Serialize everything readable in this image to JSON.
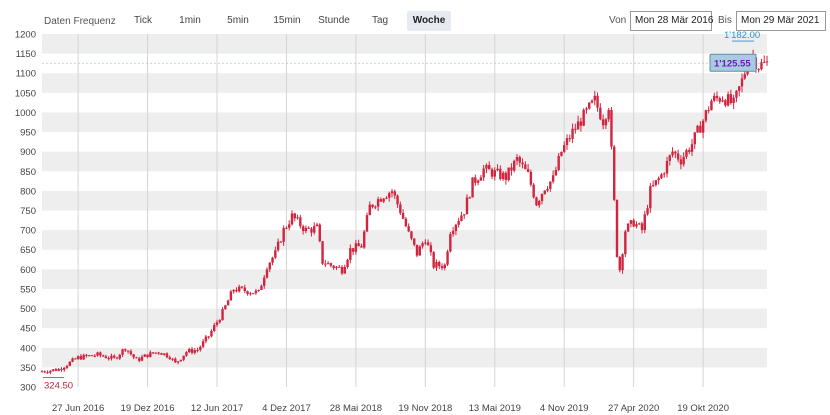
{
  "toolbar": {
    "frequency_label": "Daten Frequenz",
    "tabs": [
      {
        "label": "Tick",
        "active": false
      },
      {
        "label": "1min",
        "active": false
      },
      {
        "label": "5min",
        "active": false
      },
      {
        "label": "15min",
        "active": false
      },
      {
        "label": "Stunde",
        "active": false
      },
      {
        "label": "Tag",
        "active": false
      },
      {
        "label": "Woche",
        "active": true
      }
    ],
    "from_label": "Von",
    "from_value": "Mon 28 Mär 2016",
    "to_label": "Bis",
    "to_value": "Mon 29 Mär 2021"
  },
  "colors": {
    "candle": "#d0243f",
    "band_dark": "#eeeeee",
    "current_box_bg": "#a9cbe0",
    "current_box_border": "#5b8fb3",
    "current_text": "#6a1fb3",
    "high_label": "#2f8fc6",
    "low_label": "#c0233a"
  },
  "chart_data": {
    "type": "candlestick",
    "interval": "weekly",
    "ylim": [
      300,
      1200
    ],
    "yticks": [
      300,
      350,
      400,
      450,
      500,
      550,
      600,
      650,
      700,
      750,
      800,
      850,
      900,
      950,
      1000,
      1050,
      1100,
      1150,
      1200
    ],
    "xticks": [
      "27 Jun 2016",
      "19 Dez 2016",
      "12 Jun 2017",
      "4 Dez 2017",
      "28 Mai 2018",
      "19 Nov 2018",
      "13 Mai 2019",
      "4 Nov 2019",
      "27 Apr 2020",
      "19 Okt 2020"
    ],
    "xtick_dates": [
      "2016-06-27",
      "2016-12-19",
      "2017-06-12",
      "2017-12-04",
      "2018-05-28",
      "2018-11-19",
      "2019-05-13",
      "2019-11-04",
      "2020-04-27",
      "2020-10-19"
    ],
    "start": "2016-03-28",
    "end": "2021-03-29",
    "low_label": "324.50",
    "high_label": "1'182.00",
    "current_label": "1'125.55",
    "current_value": 1125.55,
    "anchors": [
      [
        "2016-03-28",
        340
      ],
      [
        "2016-05-09",
        345
      ],
      [
        "2016-06-27",
        375
      ],
      [
        "2016-08-15",
        382
      ],
      [
        "2016-09-26",
        372
      ],
      [
        "2016-10-24",
        400
      ],
      [
        "2016-11-21",
        368
      ],
      [
        "2016-12-19",
        382
      ],
      [
        "2017-01-16",
        390
      ],
      [
        "2017-02-13",
        378
      ],
      [
        "2017-02-27",
        360
      ],
      [
        "2017-03-27",
        390
      ],
      [
        "2017-04-24",
        395
      ],
      [
        "2017-05-22",
        430
      ],
      [
        "2017-06-26",
        490
      ],
      [
        "2017-07-24",
        550
      ],
      [
        "2017-08-28",
        545
      ],
      [
        "2017-09-25",
        540
      ],
      [
        "2017-10-16",
        610
      ],
      [
        "2017-11-06",
        640
      ],
      [
        "2017-11-27",
        700
      ],
      [
        "2017-12-18",
        735
      ],
      [
        "2018-01-22",
        700
      ],
      [
        "2018-02-19",
        705
      ],
      [
        "2018-03-05",
        620
      ],
      [
        "2018-03-26",
        610
      ],
      [
        "2018-04-23",
        600
      ],
      [
        "2018-05-14",
        650
      ],
      [
        "2018-06-11",
        660
      ],
      [
        "2018-07-02",
        760
      ],
      [
        "2018-08-06",
        790
      ],
      [
        "2018-08-27",
        800
      ],
      [
        "2018-09-17",
        750
      ],
      [
        "2018-10-08",
        690
      ],
      [
        "2018-10-29",
        640
      ],
      [
        "2018-11-19",
        680
      ],
      [
        "2018-12-10",
        610
      ],
      [
        "2019-01-07",
        610
      ],
      [
        "2019-01-21",
        700
      ],
      [
        "2019-02-25",
        750
      ],
      [
        "2019-03-18",
        820
      ],
      [
        "2019-04-15",
        855
      ],
      [
        "2019-05-13",
        845
      ],
      [
        "2019-06-10",
        835
      ],
      [
        "2019-07-08",
        880
      ],
      [
        "2019-08-05",
        840
      ],
      [
        "2019-08-26",
        770
      ],
      [
        "2019-09-16",
        810
      ],
      [
        "2019-10-07",
        830
      ],
      [
        "2019-10-28",
        900
      ],
      [
        "2019-11-25",
        950
      ],
      [
        "2019-12-23",
        990
      ],
      [
        "2020-01-20",
        1030
      ],
      [
        "2020-02-10",
        980
      ],
      [
        "2020-02-24",
        1020
      ],
      [
        "2020-03-02",
        900
      ],
      [
        "2020-03-16",
        640
      ],
      [
        "2020-03-23",
        600
      ],
      [
        "2020-04-06",
        700
      ],
      [
        "2020-04-27",
        720
      ],
      [
        "2020-05-18",
        700
      ],
      [
        "2020-06-08",
        800
      ],
      [
        "2020-07-06",
        840
      ],
      [
        "2020-08-03",
        900
      ],
      [
        "2020-08-24",
        880
      ],
      [
        "2020-09-21",
        920
      ],
      [
        "2020-10-19",
        980
      ],
      [
        "2020-11-09",
        1030
      ],
      [
        "2020-12-07",
        1040
      ],
      [
        "2021-01-04",
        1020
      ],
      [
        "2021-01-25",
        1080
      ],
      [
        "2021-02-15",
        1150
      ],
      [
        "2021-03-08",
        1120
      ],
      [
        "2021-03-29",
        1125
      ]
    ]
  }
}
